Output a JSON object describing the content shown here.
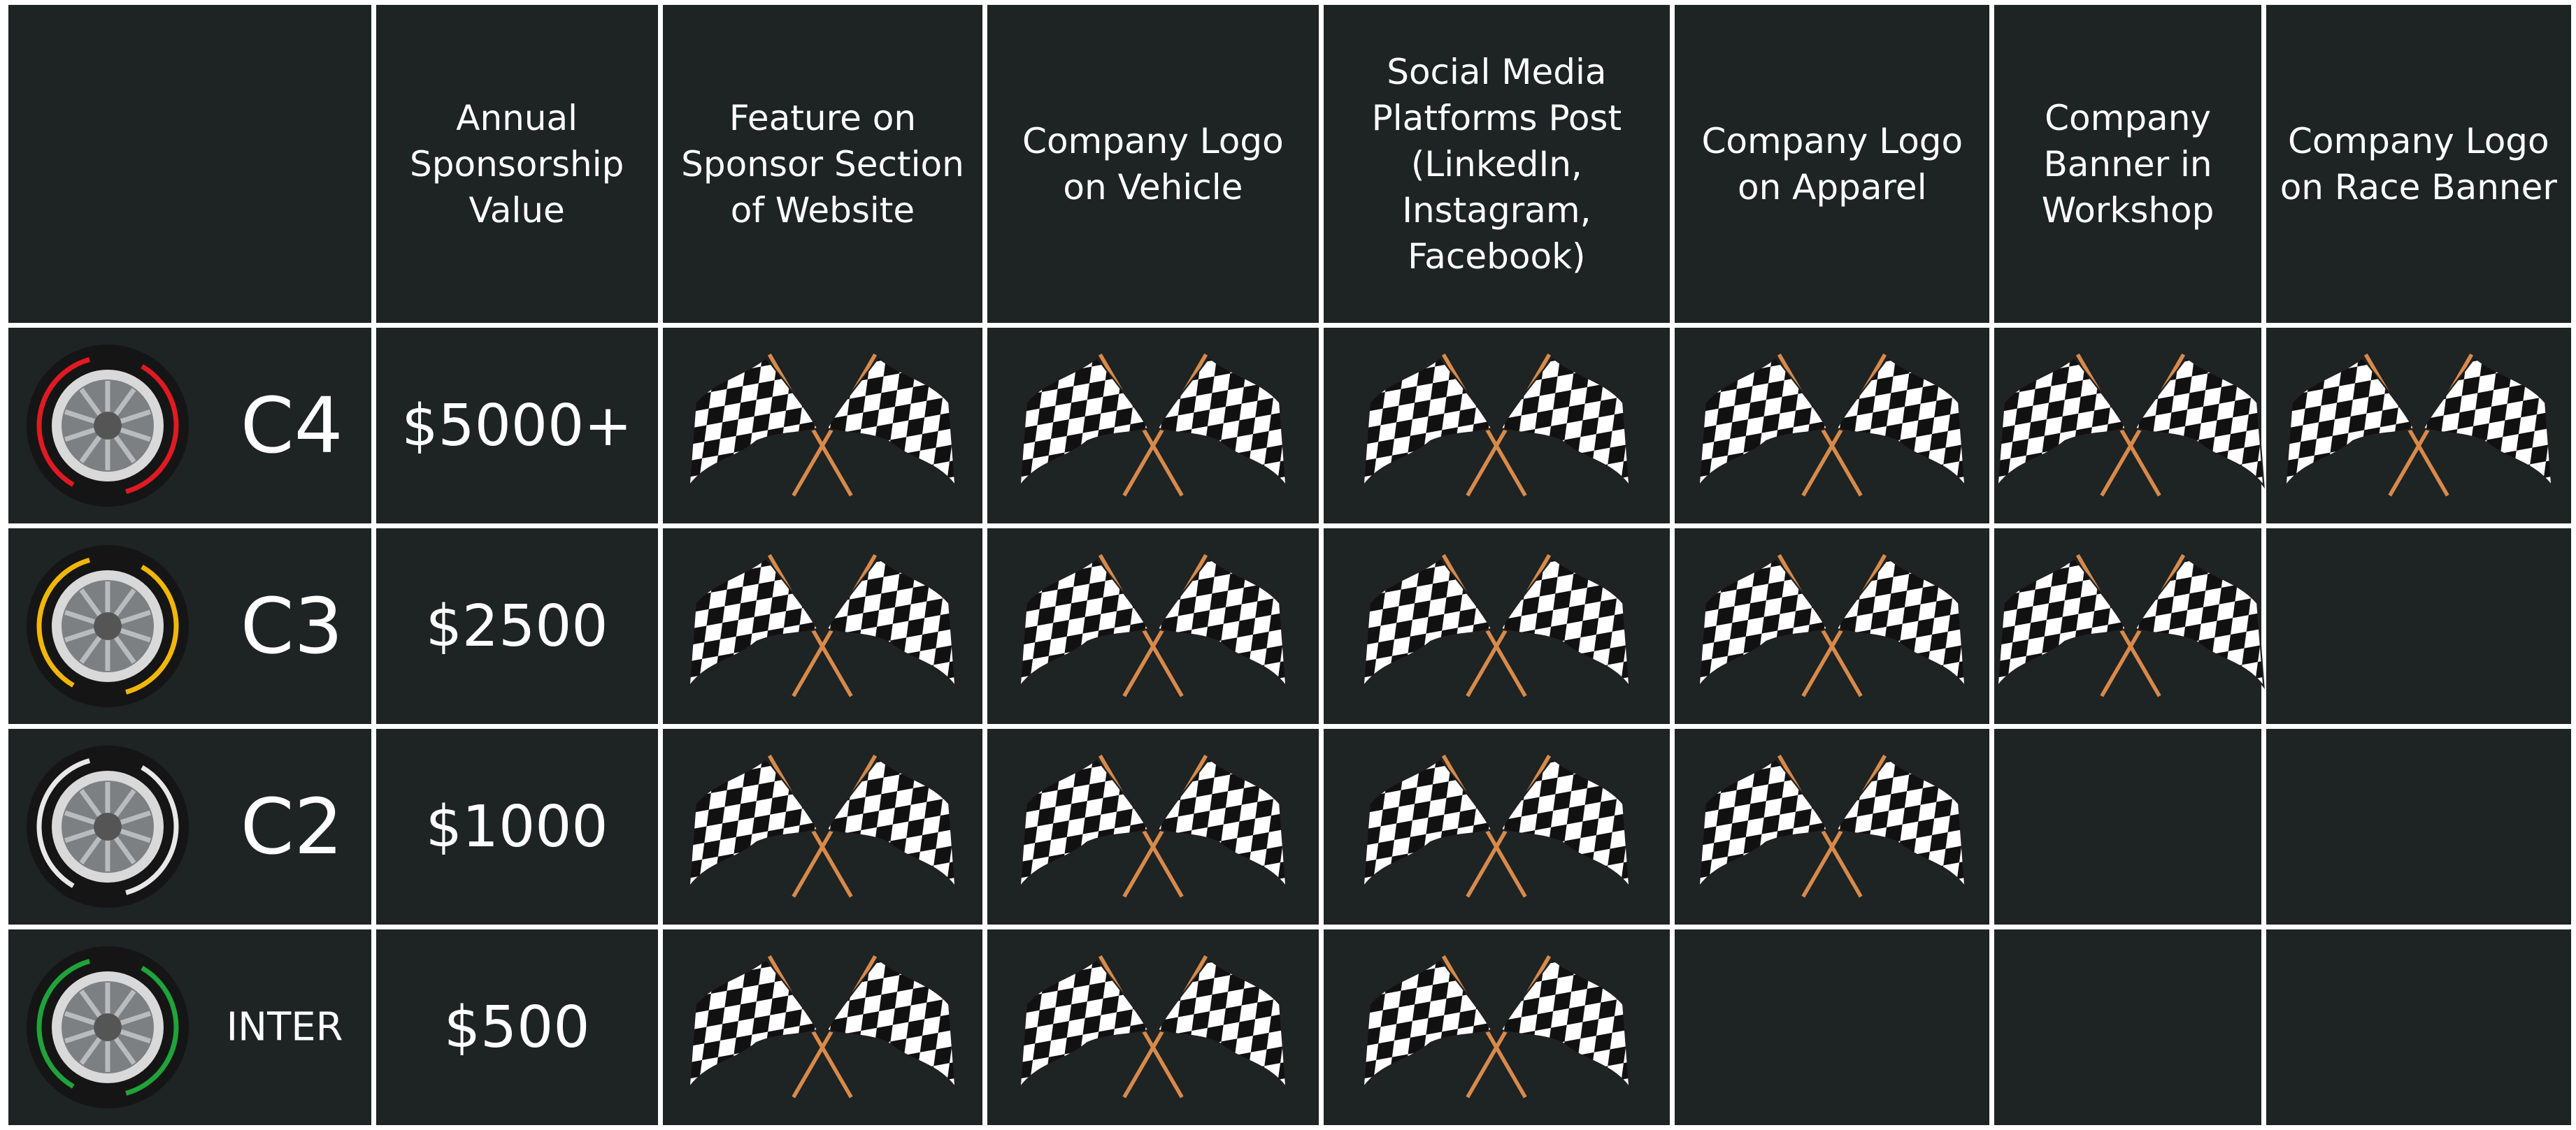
{
  "table": {
    "header": [
      "",
      "Annual Sponsorship Value",
      "Feature on Sponsor Section of Website",
      "Company Logo on Vehicle",
      "Social Media Platforms Post (LinkedIn, Instagram, Facebook)",
      "Company Logo on Apparel",
      "Company Banner in Workshop",
      "Company Logo on Race Banner"
    ],
    "rows": [
      {
        "tier": "C4",
        "tire_color": "#e01a22",
        "value": "$5000+",
        "included": [
          true,
          true,
          true,
          true,
          true,
          true
        ]
      },
      {
        "tier": "C3",
        "tire_color": "#f2b705",
        "value": "$2500",
        "included": [
          true,
          true,
          true,
          true,
          true,
          false
        ]
      },
      {
        "tier": "C2",
        "tire_color": "#e8e8e8",
        "value": "$1000",
        "included": [
          true,
          true,
          true,
          true,
          false,
          false
        ]
      },
      {
        "tier": "INTER",
        "tire_color": "#1fa33a",
        "value": "$500",
        "included": [
          true,
          true,
          true,
          false,
          false,
          false
        ]
      }
    ]
  }
}
